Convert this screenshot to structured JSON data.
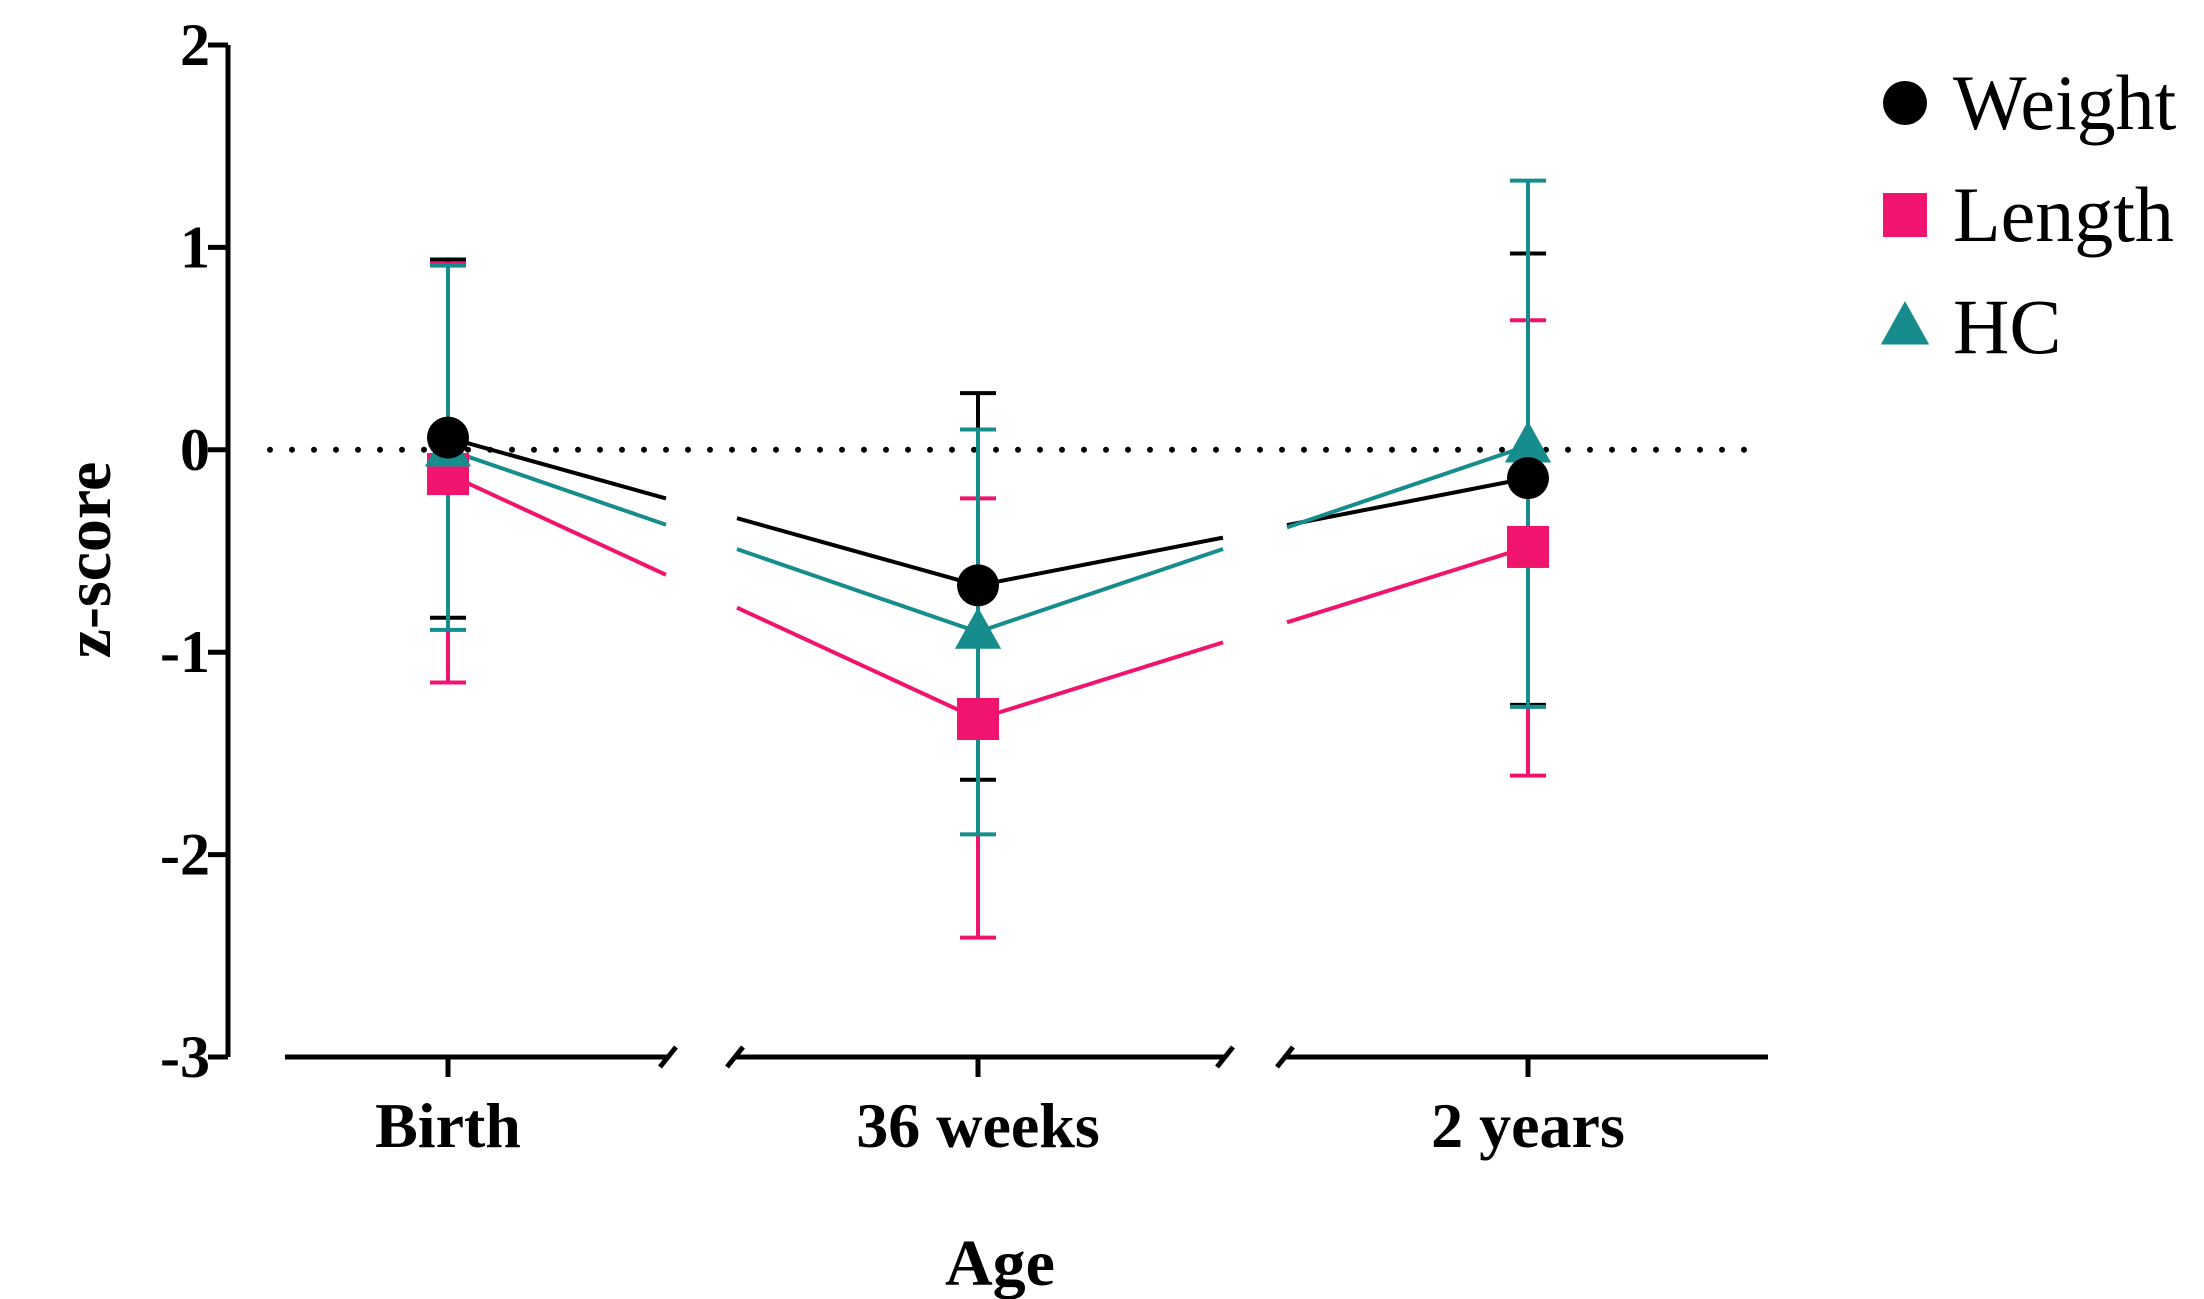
{
  "chart_data": {
    "type": "line",
    "xlabel": "Age",
    "ylabel": "z-score",
    "categories": [
      "Birth",
      "36 weeks",
      "2 years"
    ],
    "ylim": [
      -3,
      2
    ],
    "yticks": [
      "2",
      "1",
      "0",
      "-1",
      "-2",
      "-3"
    ],
    "reference_line": {
      "y": 0,
      "style": "dotted"
    },
    "broken_x_axis": true,
    "legend_position": "top-right",
    "series": [
      {
        "name": "Weight",
        "marker": "circle",
        "color": "#000000",
        "values": [
          0.06,
          -0.67,
          -0.14
        ],
        "error_upper": [
          0.94,
          0.28,
          0.97
        ],
        "error_lower": [
          -0.83,
          -1.63,
          -1.26
        ]
      },
      {
        "name": "Length",
        "marker": "square",
        "color": "#f0146e",
        "values": [
          -0.12,
          -1.33,
          -0.48
        ],
        "error_upper": [
          0.92,
          -0.24,
          0.64
        ],
        "error_lower": [
          -1.15,
          -2.41,
          -1.61
        ]
      },
      {
        "name": "HC",
        "marker": "triangle",
        "color": "#168c8c",
        "values": [
          0.0,
          -0.9,
          0.02
        ],
        "error_upper": [
          0.91,
          0.1,
          1.33
        ],
        "error_lower": [
          -0.89,
          -1.9,
          -1.27
        ]
      }
    ]
  }
}
